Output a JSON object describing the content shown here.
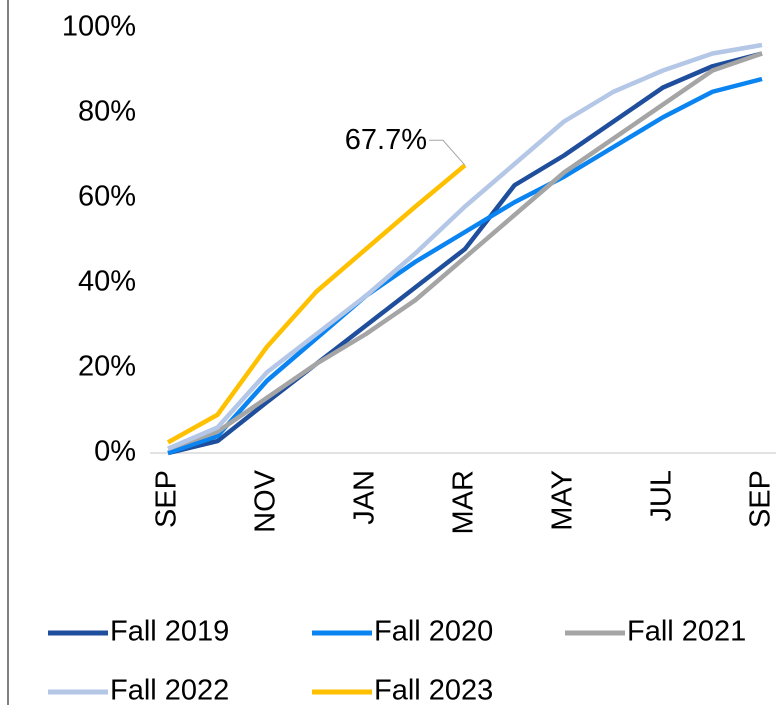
{
  "chart_data": {
    "type": "line",
    "categories": [
      "SEP",
      null,
      "NOV",
      null,
      "JAN",
      null,
      "MAR",
      null,
      "MAY",
      null,
      "JUL",
      null,
      "SEP"
    ],
    "series": [
      {
        "name": "Fall 2019",
        "color": "#1f4e9c",
        "values": [
          0,
          2.8,
          12,
          21,
          30,
          39,
          48,
          63,
          70,
          78,
          86,
          91,
          94
        ]
      },
      {
        "name": "Fall 2020",
        "color": "#0a84f0",
        "values": [
          0,
          4,
          17,
          27,
          37,
          45,
          52,
          59,
          65,
          72,
          79,
          85,
          88
        ]
      },
      {
        "name": "Fall 2021",
        "color": "#a5a5a5",
        "values": [
          1,
          5,
          13,
          21,
          28,
          36,
          46,
          56,
          66,
          74,
          82,
          90,
          94
        ]
      },
      {
        "name": "Fall 2022",
        "color": "#b4c7e7",
        "values": [
          1,
          6,
          19,
          28,
          37,
          47,
          58,
          68,
          78,
          85,
          90,
          94,
          96
        ]
      },
      {
        "name": "Fall 2023",
        "color": "#ffc000",
        "values": [
          2.5,
          9,
          25,
          38,
          48,
          58,
          67.7,
          null,
          null,
          null,
          null,
          null,
          null
        ],
        "value_labels": [
          null,
          null,
          null,
          null,
          null,
          null,
          "67.7%",
          null,
          null,
          null,
          null,
          null,
          null
        ]
      }
    ],
    "ylim": [
      0,
      100
    ],
    "yticks": [
      {
        "value": 0,
        "label": "0%"
      },
      {
        "value": 20,
        "label": "20%"
      },
      {
        "value": 40,
        "label": "40%"
      },
      {
        "value": 60,
        "label": "60%"
      },
      {
        "value": 80,
        "label": "80%"
      },
      {
        "value": 100,
        "label": "100%"
      }
    ],
    "grid": false,
    "legend": "bottom"
  }
}
